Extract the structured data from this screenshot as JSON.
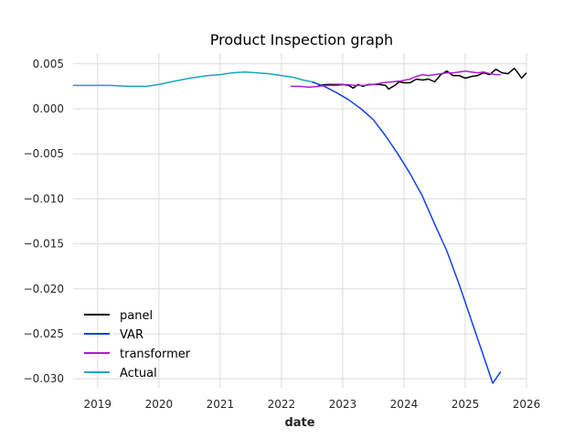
{
  "chart_data": {
    "type": "line",
    "title": "Product Inspection graph",
    "xlabel": "date",
    "ylabel": "",
    "xlim": [
      2018.6,
      2026.0
    ],
    "ylim": [
      -0.031,
      0.0062
    ],
    "x_ticks": [
      2019,
      2020,
      2021,
      2022,
      2023,
      2024,
      2025,
      2026
    ],
    "x_tick_labels": [
      "2019",
      "2020",
      "2021",
      "2022",
      "2023",
      "2024",
      "2025",
      "2026"
    ],
    "y_ticks": [
      0.005,
      0.0,
      -0.005,
      -0.01,
      -0.015,
      -0.02,
      -0.025,
      -0.03
    ],
    "y_tick_labels": [
      "0.005",
      "0.000",
      "−0.005",
      "−0.010",
      "−0.015",
      "−0.020",
      "−0.025",
      "−0.030"
    ],
    "grid": true,
    "legend_position": "lower-left",
    "series": [
      {
        "name": "panel",
        "color": "#000000",
        "x": [
          2022.6,
          2022.75,
          2022.9,
          2023.0,
          2023.1,
          2023.17,
          2023.25,
          2023.33,
          2023.42,
          2023.5,
          2023.6,
          2023.7,
          2023.75,
          2023.85,
          2023.92,
          2024.0,
          2024.1,
          2024.2,
          2024.3,
          2024.4,
          2024.5,
          2024.6,
          2024.7,
          2024.8,
          2024.9,
          2025.0,
          2025.1,
          2025.2,
          2025.3,
          2025.4,
          2025.5,
          2025.6,
          2025.7,
          2025.8,
          2025.85,
          2025.92,
          2026.0
        ],
        "y": [
          0.0026,
          0.0027,
          0.0027,
          0.0027,
          0.0026,
          0.0023,
          0.0027,
          0.0025,
          0.0027,
          0.0027,
          0.0027,
          0.0026,
          0.0022,
          0.0026,
          0.003,
          0.0029,
          0.0029,
          0.0033,
          0.0032,
          0.0033,
          0.003,
          0.0038,
          0.0042,
          0.0037,
          0.0037,
          0.0034,
          0.0036,
          0.0037,
          0.004,
          0.0038,
          0.0044,
          0.004,
          0.0039,
          0.0045,
          0.0041,
          0.0034,
          0.004
        ]
      },
      {
        "name": "VAR",
        "color": "#1341e5",
        "x": [
          2022.5,
          2022.7,
          2022.9,
          2023.1,
          2023.3,
          2023.5,
          2023.7,
          2023.9,
          2024.1,
          2024.3,
          2024.5,
          2024.7,
          2024.9,
          2025.1,
          2025.3,
          2025.45,
          2025.58
        ],
        "y": [
          0.003,
          0.0025,
          0.0018,
          0.001,
          0.0,
          -0.0012,
          -0.003,
          -0.005,
          -0.0072,
          -0.0097,
          -0.0128,
          -0.0158,
          -0.0195,
          -0.0235,
          -0.0275,
          -0.0305,
          -0.0292
        ]
      },
      {
        "name": "transformer",
        "color": "#b21ad1",
        "x": [
          2022.15,
          2022.3,
          2022.45,
          2022.6,
          2022.75,
          2022.9,
          2023.05,
          2023.2,
          2023.35,
          2023.5,
          2023.65,
          2023.8,
          2023.95,
          2024.1,
          2024.2,
          2024.3,
          2024.4,
          2024.5,
          2024.6,
          2024.7,
          2024.8,
          2024.9,
          2025.0,
          2025.1,
          2025.2,
          2025.3,
          2025.4,
          2025.5,
          2025.58
        ],
        "y": [
          0.0025,
          0.0025,
          0.0024,
          0.0025,
          0.0026,
          0.0026,
          0.0027,
          0.0026,
          0.0026,
          0.0027,
          0.0029,
          0.003,
          0.0031,
          0.0033,
          0.0036,
          0.0038,
          0.0037,
          0.0038,
          0.0039,
          0.004,
          0.004,
          0.0041,
          0.0042,
          0.0041,
          0.004,
          0.0041,
          0.0039,
          0.0038,
          0.0038
        ]
      },
      {
        "name": "Actual",
        "color": "#17a6bd",
        "x": [
          2018.6,
          2018.9,
          2019.2,
          2019.5,
          2019.8,
          2020.0,
          2020.2,
          2020.5,
          2020.8,
          2021.0,
          2021.2,
          2021.4,
          2021.6,
          2021.8,
          2022.0,
          2022.2,
          2022.35,
          2022.5
        ],
        "y": [
          0.0026,
          0.0026,
          0.0026,
          0.0025,
          0.0025,
          0.0027,
          0.003,
          0.0034,
          0.0037,
          0.0038,
          0.004,
          0.0041,
          0.004,
          0.0039,
          0.0037,
          0.0035,
          0.0032,
          0.003
        ]
      }
    ]
  }
}
